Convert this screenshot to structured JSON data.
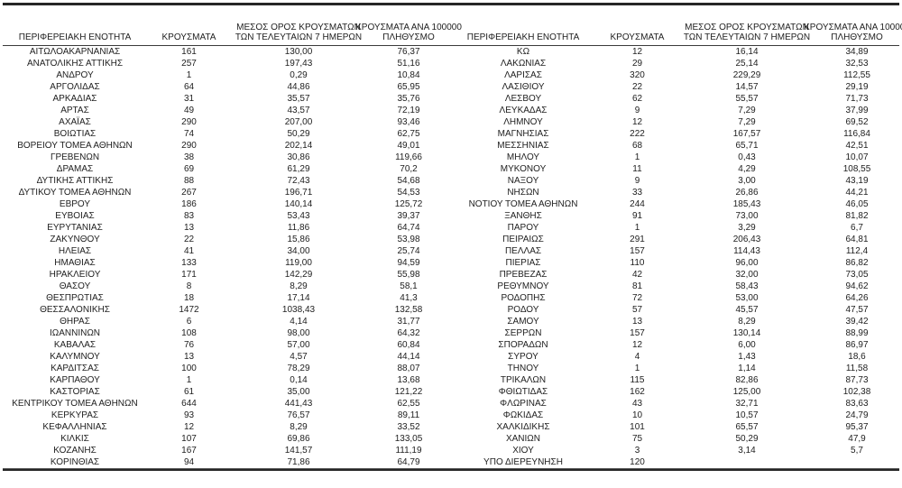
{
  "page": {
    "background_color": "#ffffff",
    "text_color": "#212121",
    "border_color": "#262626"
  },
  "table": {
    "headers": {
      "region": "ΠΕΡΙΦΕΡΕΙΑΚΗ ΕΝΟΤΗΤΑ",
      "cases": "ΚΡΟΥΣΜΑΤΑ",
      "avg7": "ΜΕΣΟΣ ΟΡΟΣ ΚΡΟΥΣΜΑΤΩΝ ΤΩΝ ΤΕΛΕΥΤΑΙΩΝ 7 ΗΜΕΡΩΝ",
      "per100k": "ΚΡΟΥΣΜΑΤΑ ΑΝΑ 100000 ΠΛΗΘΥΣΜΟ"
    },
    "left_rows": [
      [
        "ΑΙΤΩΛΟΑΚΑΡΝΑΝΙΑΣ",
        "161",
        "130,00",
        "76,37"
      ],
      [
        "ΑΝΑΤΟΛΙΚΗΣ ΑΤΤΙΚΗΣ",
        "257",
        "197,43",
        "51,16"
      ],
      [
        "ΑΝΔΡΟΥ",
        "1",
        "0,29",
        "10,84"
      ],
      [
        "ΑΡΓΟΛΙΔΑΣ",
        "64",
        "44,86",
        "65,95"
      ],
      [
        "ΑΡΚΑΔΙΑΣ",
        "31",
        "35,57",
        "35,76"
      ],
      [
        "ΑΡΤΑΣ",
        "49",
        "43,57",
        "72,19"
      ],
      [
        "ΑΧΑΪΑΣ",
        "290",
        "207,00",
        "93,46"
      ],
      [
        "ΒΟΙΩΤΙΑΣ",
        "74",
        "50,29",
        "62,75"
      ],
      [
        "ΒΟΡΕΙΟΥ ΤΟΜΕΑ ΑΘΗΝΩΝ",
        "290",
        "202,14",
        "49,01"
      ],
      [
        "ΓΡΕΒΕΝΩΝ",
        "38",
        "30,86",
        "119,66"
      ],
      [
        "ΔΡΑΜΑΣ",
        "69",
        "61,29",
        "70,2"
      ],
      [
        "ΔΥΤΙΚΗΣ ΑΤΤΙΚΗΣ",
        "88",
        "72,43",
        "54,68"
      ],
      [
        "ΔΥΤΙΚΟΥ ΤΟΜΕΑ ΑΘΗΝΩΝ",
        "267",
        "196,71",
        "54,53"
      ],
      [
        "ΕΒΡΟΥ",
        "186",
        "140,14",
        "125,72"
      ],
      [
        "ΕΥΒΟΙΑΣ",
        "83",
        "53,43",
        "39,37"
      ],
      [
        "ΕΥΡΥΤΑΝΙΑΣ",
        "13",
        "11,86",
        "64,74"
      ],
      [
        "ΖΑΚΥΝΘΟΥ",
        "22",
        "15,86",
        "53,98"
      ],
      [
        "ΗΛΕΙΑΣ",
        "41",
        "34,00",
        "25,74"
      ],
      [
        "ΗΜΑΘΙΑΣ",
        "133",
        "119,00",
        "94,59"
      ],
      [
        "ΗΡΑΚΛΕΙΟΥ",
        "171",
        "142,29",
        "55,98"
      ],
      [
        "ΘΑΣΟΥ",
        "8",
        "8,29",
        "58,1"
      ],
      [
        "ΘΕΣΠΡΩΤΙΑΣ",
        "18",
        "17,14",
        "41,3"
      ],
      [
        "ΘΕΣΣΑΛΟΝΙΚΗΣ",
        "1472",
        "1038,43",
        "132,58"
      ],
      [
        "ΘΗΡΑΣ",
        "6",
        "4,14",
        "31,77"
      ],
      [
        "ΙΩΑΝΝΙΝΩΝ",
        "108",
        "98,00",
        "64,32"
      ],
      [
        "ΚΑΒΑΛΑΣ",
        "76",
        "57,00",
        "60,84"
      ],
      [
        "ΚΑΛΥΜΝΟΥ",
        "13",
        "4,57",
        "44,14"
      ],
      [
        "ΚΑΡΔΙΤΣΑΣ",
        "100",
        "78,29",
        "88,07"
      ],
      [
        "ΚΑΡΠΑΘΟΥ",
        "1",
        "0,14",
        "13,68"
      ],
      [
        "ΚΑΣΤΟΡΙΑΣ",
        "61",
        "35,00",
        "121,22"
      ],
      [
        "ΚΕΝΤΡΙΚΟΥ ΤΟΜΕΑ ΑΘΗΝΩΝ",
        "644",
        "441,43",
        "62,55"
      ],
      [
        "ΚΕΡΚΥΡΑΣ",
        "93",
        "76,57",
        "89,11"
      ],
      [
        "ΚΕΦΑΛΛΗΝΙΑΣ",
        "12",
        "8,29",
        "33,52"
      ],
      [
        "ΚΙΛΚΙΣ",
        "107",
        "69,86",
        "133,05"
      ],
      [
        "ΚΟΖΑΝΗΣ",
        "167",
        "141,57",
        "111,19"
      ],
      [
        "ΚΟΡΙΝΘΙΑΣ",
        "94",
        "71,86",
        "64,79"
      ]
    ],
    "right_rows": [
      [
        "ΚΩ",
        "12",
        "16,14",
        "34,89"
      ],
      [
        "ΛΑΚΩΝΙΑΣ",
        "29",
        "25,14",
        "32,53"
      ],
      [
        "ΛΑΡΙΣΑΣ",
        "320",
        "229,29",
        "112,55"
      ],
      [
        "ΛΑΣΙΘΙΟΥ",
        "22",
        "14,57",
        "29,19"
      ],
      [
        "ΛΕΣΒΟΥ",
        "62",
        "55,57",
        "71,73"
      ],
      [
        "ΛΕΥΚΑΔΑΣ",
        "9",
        "7,29",
        "37,99"
      ],
      [
        "ΛΗΜΝΟΥ",
        "12",
        "7,29",
        "69,52"
      ],
      [
        "ΜΑΓΝΗΣΙΑΣ",
        "222",
        "167,57",
        "116,84"
      ],
      [
        "ΜΕΣΣΗΝΙΑΣ",
        "68",
        "65,71",
        "42,51"
      ],
      [
        "ΜΗΛΟΥ",
        "1",
        "0,43",
        "10,07"
      ],
      [
        "ΜΥΚΟΝΟΥ",
        "11",
        "4,29",
        "108,55"
      ],
      [
        "ΝΑΞΟΥ",
        "9",
        "3,00",
        "43,19"
      ],
      [
        "ΝΗΣΩΝ",
        "33",
        "26,86",
        "44,21"
      ],
      [
        "ΝΟΤΙΟΥ ΤΟΜΕΑ ΑΘΗΝΩΝ",
        "244",
        "185,43",
        "46,05"
      ],
      [
        "ΞΑΝΘΗΣ",
        "91",
        "73,00",
        "81,82"
      ],
      [
        "ΠΑΡΟΥ",
        "1",
        "3,29",
        "6,7"
      ],
      [
        "ΠΕΙΡΑΙΩΣ",
        "291",
        "206,43",
        "64,81"
      ],
      [
        "ΠΕΛΛΑΣ",
        "157",
        "114,43",
        "112,4"
      ],
      [
        "ΠΙΕΡΙΑΣ",
        "110",
        "96,00",
        "86,82"
      ],
      [
        "ΠΡΕΒΕΖΑΣ",
        "42",
        "32,00",
        "73,05"
      ],
      [
        "ΡΕΘΥΜΝΟΥ",
        "81",
        "58,43",
        "94,62"
      ],
      [
        "ΡΟΔΟΠΗΣ",
        "72",
        "53,00",
        "64,26"
      ],
      [
        "ΡΟΔΟΥ",
        "57",
        "45,57",
        "47,57"
      ],
      [
        "ΣΑΜΟΥ",
        "13",
        "8,29",
        "39,42"
      ],
      [
        "ΣΕΡΡΩΝ",
        "157",
        "130,14",
        "88,99"
      ],
      [
        "ΣΠΟΡΑΔΩΝ",
        "12",
        "6,00",
        "86,97"
      ],
      [
        "ΣΥΡΟΥ",
        "4",
        "1,43",
        "18,6"
      ],
      [
        "ΤΗΝΟΥ",
        "1",
        "1,14",
        "11,58"
      ],
      [
        "ΤΡΙΚΑΛΩΝ",
        "115",
        "82,86",
        "87,73"
      ],
      [
        "ΦΘΙΩΤΙΔΑΣ",
        "162",
        "125,00",
        "102,38"
      ],
      [
        "ΦΛΩΡΙΝΑΣ",
        "43",
        "32,71",
        "83,63"
      ],
      [
        "ΦΩΚΙΔΑΣ",
        "10",
        "10,57",
        "24,79"
      ],
      [
        "ΧΑΛΚΙΔΙΚΗΣ",
        "101",
        "65,57",
        "95,37"
      ],
      [
        "ΧΑΝΙΩΝ",
        "75",
        "50,29",
        "47,9"
      ],
      [
        "ΧΙΟΥ",
        "3",
        "3,14",
        "5,7"
      ],
      [
        "ΥΠΟ ΔΙΕΡΕΥΝΗΣΗ",
        "120",
        "",
        ""
      ]
    ]
  }
}
